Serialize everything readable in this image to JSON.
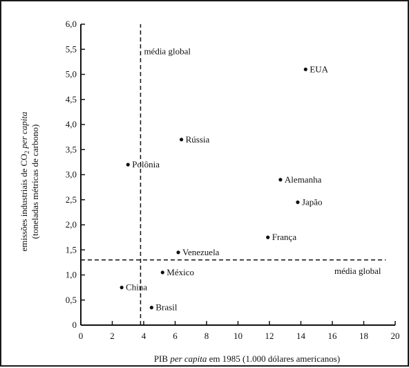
{
  "chart_data": {
    "type": "scatter",
    "xlabel_parts": [
      "PIB ",
      "per capita",
      " em 1985 (1.000 dólares americanos)"
    ],
    "ylabel_line1_parts": [
      "emissões industriais de CO",
      "2",
      " ",
      "per capita"
    ],
    "ylabel_line2": "(toneladas métricas de carbono)",
    "xlim": [
      0,
      20
    ],
    "ylim": [
      0,
      6.0
    ],
    "x_ticks": [
      0,
      2,
      4,
      6,
      8,
      10,
      12,
      14,
      16,
      18,
      20
    ],
    "x_tick_labels": [
      "0",
      "2",
      "4",
      "6",
      "8",
      "10",
      "12",
      "14",
      "16",
      "18",
      "20"
    ],
    "y_ticks": [
      0,
      0.5,
      1.0,
      1.5,
      2.0,
      2.5,
      3.0,
      3.5,
      4.0,
      4.5,
      5.0,
      5.5,
      6.0
    ],
    "y_tick_labels": [
      "0",
      "0,5",
      "1,0",
      "1,5",
      "2,0",
      "2,5",
      "3,0",
      "3,5",
      "4,0",
      "4,5",
      "5,0",
      "5,5",
      "6,0"
    ],
    "points": [
      {
        "label": "EUA",
        "x": 14.3,
        "y": 5.1
      },
      {
        "label": "Rússia",
        "x": 6.4,
        "y": 3.7
      },
      {
        "label": "Polônia",
        "x": 3.0,
        "y": 3.2
      },
      {
        "label": "Alemanha",
        "x": 12.7,
        "y": 2.9
      },
      {
        "label": "Japão",
        "x": 13.8,
        "y": 2.45
      },
      {
        "label": "França",
        "x": 11.9,
        "y": 1.75
      },
      {
        "label": "Venezuela",
        "x": 6.2,
        "y": 1.45
      },
      {
        "label": "México",
        "x": 5.2,
        "y": 1.05
      },
      {
        "label": "China",
        "x": 2.6,
        "y": 0.75
      },
      {
        "label": "Brasil",
        "x": 4.5,
        "y": 0.35
      }
    ],
    "ref_lines": {
      "vertical_x": 3.8,
      "horizontal_y": 1.3,
      "vertical_label": "média global",
      "horizontal_label": "média global"
    },
    "grid": false,
    "legend": "none"
  }
}
